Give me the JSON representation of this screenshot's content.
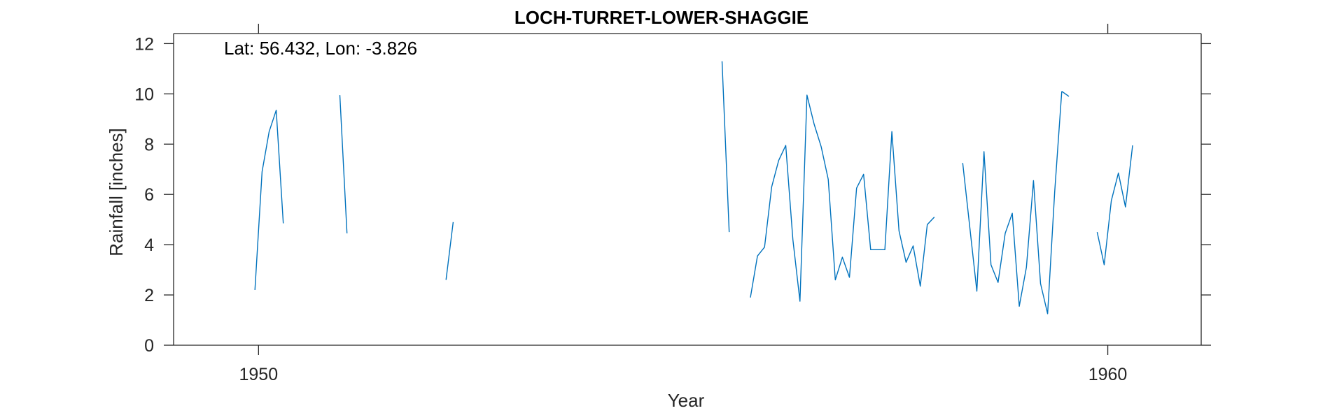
{
  "chart_data": {
    "type": "line",
    "title": "LOCH-TURRET-LOWER-SHAGGIE",
    "xlabel": "Year",
    "ylabel": "Rainfall [inches]",
    "annotation": "Lat: 56.432, Lon: -3.826",
    "xlim": [
      1949.0,
      1961.1
    ],
    "ylim": [
      0,
      12.4
    ],
    "x_ticks": [
      1950,
      1960
    ],
    "x_tick_labels": [
      "1950",
      "1960"
    ],
    "y_ticks": [
      0,
      2,
      4,
      6,
      8,
      10,
      12
    ],
    "y_tick_labels": [
      "0",
      "2",
      "4",
      "6",
      "8",
      "10",
      "12"
    ],
    "grid": false,
    "color": "#0072BD",
    "series": [
      {
        "segments": [
          {
            "x": [
              1949.958,
              1950.042,
              1950.125,
              1950.208,
              1950.292
            ],
            "y": [
              2.2,
              6.9,
              8.5,
              9.35,
              4.85
            ]
          },
          {
            "x": [
              1950.958,
              1951.042
            ],
            "y": [
              9.95,
              4.45
            ]
          },
          {
            "x": [
              1952.208,
              1952.292
            ],
            "y": [
              2.6,
              4.9
            ]
          },
          {
            "x": [
              1955.458,
              1955.542
            ],
            "y": [
              11.3,
              4.5
            ]
          },
          {
            "x": [
              1955.792,
              1955.875,
              1955.958,
              1956.042,
              1956.125,
              1956.208,
              1956.292,
              1956.375,
              1956.458,
              1956.542,
              1956.625,
              1956.708,
              1956.792,
              1956.875,
              1956.958,
              1957.042,
              1957.125,
              1957.208,
              1957.292,
              1957.375,
              1957.458,
              1957.542,
              1957.625,
              1957.708,
              1957.792,
              1957.875,
              1957.958
            ],
            "y": [
              1.9,
              3.55,
              3.9,
              6.3,
              7.35,
              7.95,
              4.2,
              1.75,
              9.95,
              8.8,
              7.9,
              6.6,
              2.6,
              3.5,
              2.7,
              6.25,
              6.8,
              3.8,
              3.8,
              3.8,
              8.5,
              4.55,
              3.3,
              3.95,
              2.35,
              4.8,
              5.1
            ]
          },
          {
            "x": [
              1958.292,
              1958.375,
              1958.458,
              1958.542,
              1958.625,
              1958.708,
              1958.792,
              1958.875,
              1958.958,
              1959.042,
              1959.125,
              1959.208,
              1959.292,
              1959.375,
              1959.458
            ],
            "y": [
              7.25,
              4.7,
              2.15,
              7.7,
              3.2,
              2.5,
              4.45,
              5.25,
              1.55,
              3.1,
              6.55,
              2.45,
              1.25,
              6.1,
              10.1
            ]
          },
          {
            "x": [
              1959.458,
              1959.542
            ],
            "y": [
              10.1,
              9.9
            ]
          },
          {
            "x": [
              1959.875,
              1959.958,
              1960.042,
              1960.125,
              1960.208,
              1960.292
            ],
            "y": [
              4.5,
              3.2,
              5.75,
              6.85,
              5.5,
              7.95
            ]
          }
        ]
      }
    ]
  }
}
